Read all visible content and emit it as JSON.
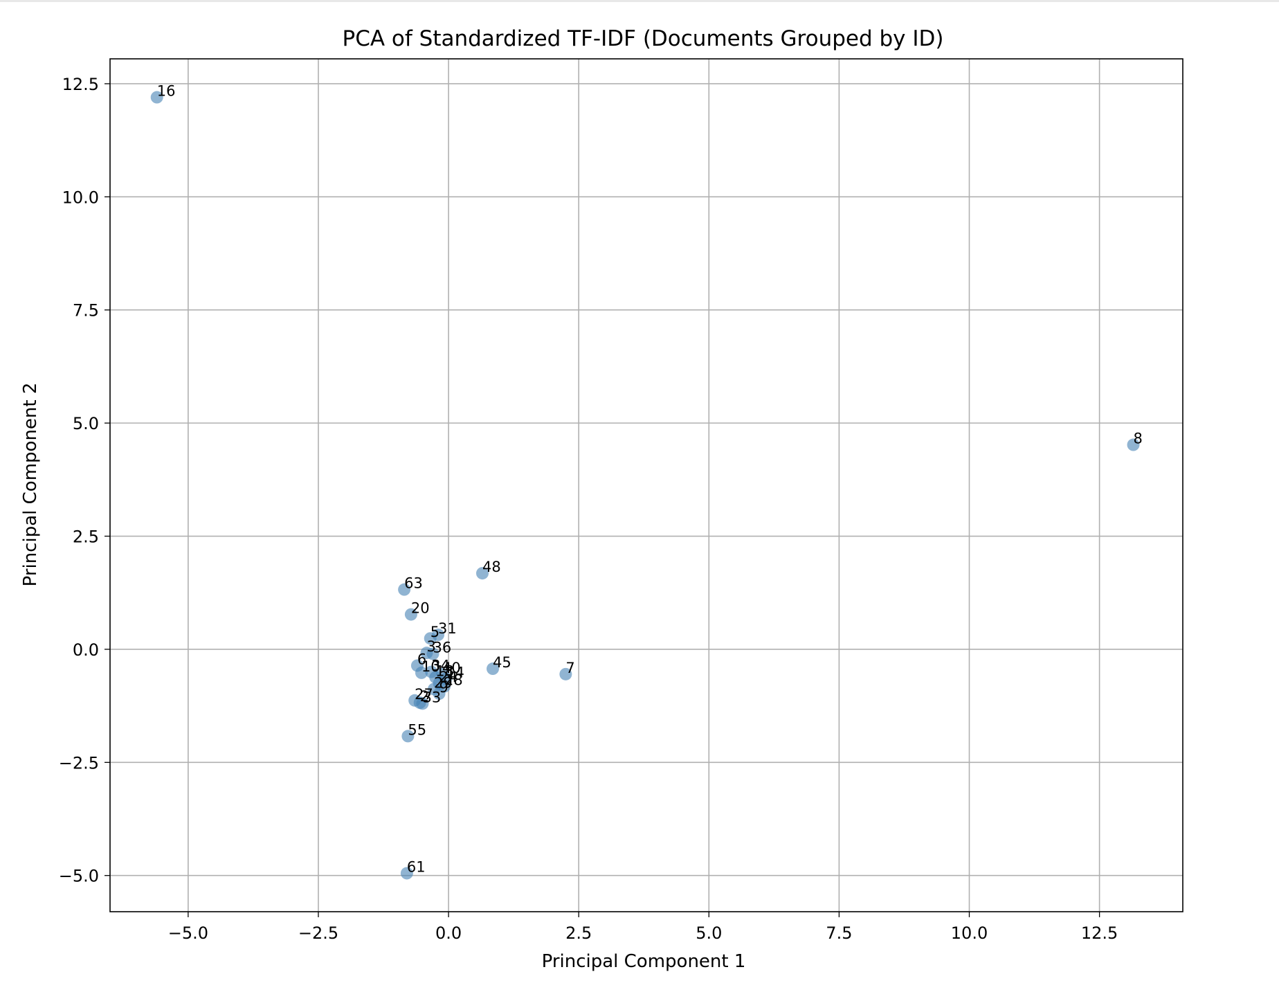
{
  "chart_data": {
    "type": "scatter",
    "title": "PCA of Standardized TF-IDF (Documents Grouped by ID)",
    "xlabel": "Principal Component 1",
    "ylabel": "Principal Component 2",
    "xlim": [
      -6.5,
      14.1
    ],
    "ylim": [
      -5.8,
      13.05
    ],
    "xticks": [
      -5.0,
      -2.5,
      0.0,
      2.5,
      5.0,
      7.5,
      10.0,
      12.5
    ],
    "xtick_labels": [
      "−5.0",
      "−2.5",
      "0.0",
      "2.5",
      "5.0",
      "7.5",
      "10.0",
      "12.5"
    ],
    "yticks": [
      -5.0,
      -2.5,
      0.0,
      2.5,
      5.0,
      7.5,
      10.0,
      12.5
    ],
    "ytick_labels": [
      "−5.0",
      "−2.5",
      "0.0",
      "2.5",
      "5.0",
      "7.5",
      "10.0",
      "12.5"
    ],
    "grid": true,
    "point_color": "#4682b4",
    "point_alpha": 0.6,
    "points": [
      {
        "label": "16",
        "x": -5.6,
        "y": 12.2
      },
      {
        "label": "8",
        "x": 13.15,
        "y": 4.52
      },
      {
        "label": "48",
        "x": 0.65,
        "y": 1.68
      },
      {
        "label": "63",
        "x": -0.85,
        "y": 1.32
      },
      {
        "label": "20",
        "x": -0.72,
        "y": 0.77
      },
      {
        "label": "5",
        "x": -0.35,
        "y": 0.24
      },
      {
        "label": "31",
        "x": -0.2,
        "y": 0.32
      },
      {
        "label": "3",
        "x": -0.42,
        "y": -0.08
      },
      {
        "label": "36",
        "x": -0.3,
        "y": -0.1
      },
      {
        "label": "6",
        "x": -0.6,
        "y": -0.36
      },
      {
        "label": "10",
        "x": -0.52,
        "y": -0.52
      },
      {
        "label": "34",
        "x": -0.33,
        "y": -0.5
      },
      {
        "label": "40",
        "x": -0.12,
        "y": -0.55
      },
      {
        "label": "18",
        "x": -0.25,
        "y": -0.62
      },
      {
        "label": "14",
        "x": -0.05,
        "y": -0.65
      },
      {
        "label": "24",
        "x": -0.18,
        "y": -0.75
      },
      {
        "label": "28",
        "x": -0.08,
        "y": -0.82
      },
      {
        "label": "29",
        "x": -0.28,
        "y": -0.88
      },
      {
        "label": "9",
        "x": -0.18,
        "y": -0.98
      },
      {
        "label": "27",
        "x": -0.65,
        "y": -1.13
      },
      {
        "label": "2",
        "x": -0.55,
        "y": -1.18
      },
      {
        "label": "33",
        "x": -0.5,
        "y": -1.2
      },
      {
        "label": "45",
        "x": 0.85,
        "y": -0.43
      },
      {
        "label": "7",
        "x": 2.25,
        "y": -0.55
      },
      {
        "label": "55",
        "x": -0.78,
        "y": -1.92
      },
      {
        "label": "61",
        "x": -0.8,
        "y": -4.95
      }
    ]
  }
}
